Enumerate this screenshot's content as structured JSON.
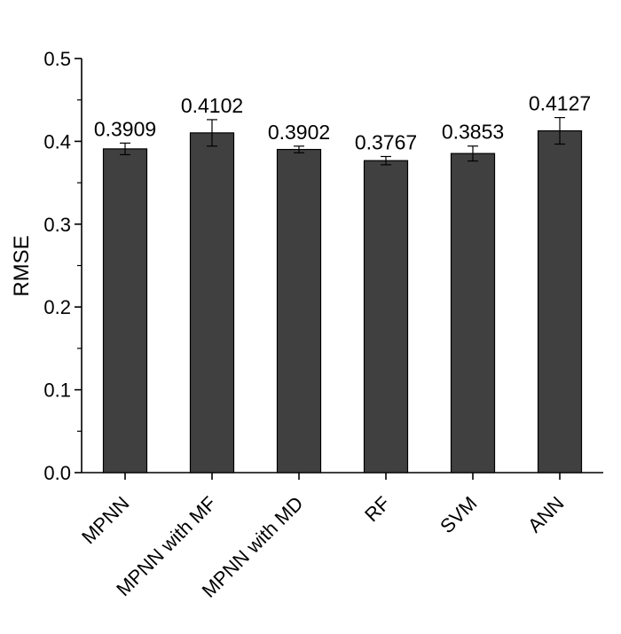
{
  "chart_data": {
    "type": "bar",
    "title": "",
    "xlabel": "",
    "ylabel": "RMSE",
    "ylim": [
      0.0,
      0.5
    ],
    "yticks": [
      "0.0",
      "0.1",
      "0.2",
      "0.3",
      "0.4",
      "0.5"
    ],
    "grid": false,
    "categories": [
      "MPNN",
      "MPNN with MF",
      "MPNN with MD",
      "RF",
      "SVM",
      "ANN"
    ],
    "values": [
      0.3909,
      0.4102,
      0.3902,
      0.3767,
      0.3853,
      0.4127
    ],
    "value_labels": [
      "0.3909",
      "0.4102",
      "0.3902",
      "0.3767",
      "0.3853",
      "0.4127"
    ],
    "errors": [
      0.007,
      0.016,
      0.004,
      0.005,
      0.009,
      0.016
    ],
    "bar_color": "#404040",
    "edge_color": "#000000"
  }
}
